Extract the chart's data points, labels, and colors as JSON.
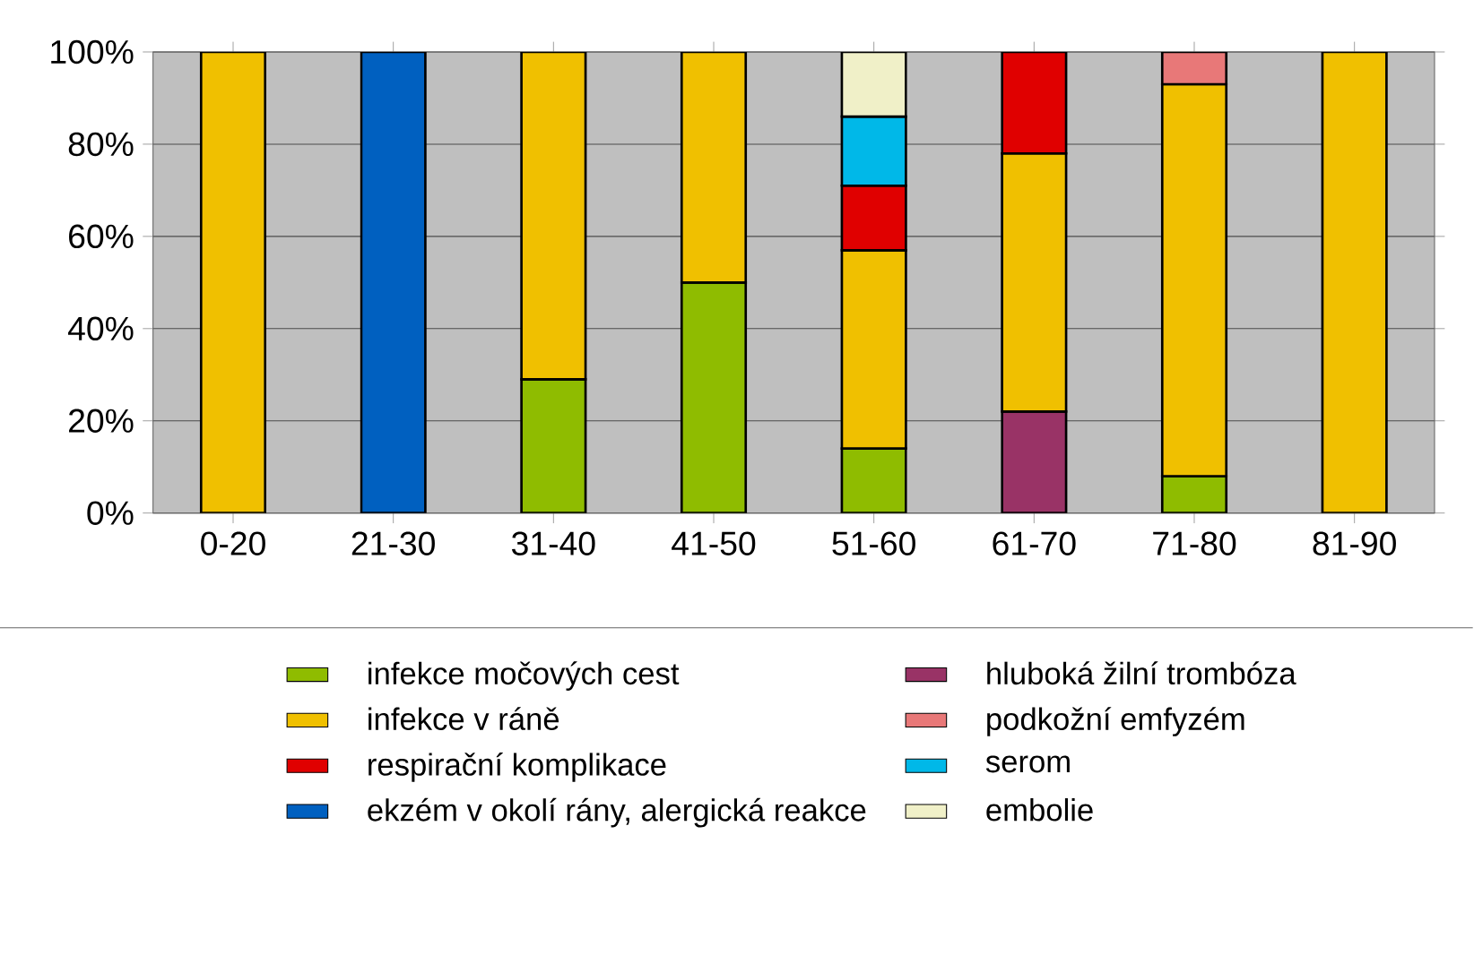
{
  "chart_data": {
    "type": "bar",
    "stacked": true,
    "categories": [
      "0-20",
      "21-30",
      "31-40",
      "41-50",
      "51-60",
      "61-70",
      "71-80",
      "81-90"
    ],
    "series": [
      {
        "name": "infekce močových cest",
        "color": "#8fbc00",
        "values": [
          null,
          null,
          29,
          50,
          14,
          null,
          8,
          null
        ]
      },
      {
        "name": "hluboká žilní trombóza",
        "color": "#993366",
        "values": [
          null,
          null,
          null,
          null,
          null,
          22,
          null,
          null
        ]
      },
      {
        "name": "infekce v ráně",
        "color": "#f0c000",
        "values": [
          100,
          null,
          71,
          50,
          43,
          56,
          85,
          100
        ]
      },
      {
        "name": "podkožní emfyzém",
        "color": "#e87878",
        "values": [
          null,
          null,
          null,
          null,
          null,
          null,
          7,
          null
        ]
      },
      {
        "name": "respirační komplikace",
        "color": "#e00000",
        "values": [
          null,
          null,
          null,
          null,
          14,
          22,
          null,
          null
        ]
      },
      {
        "name": "serom",
        "color": "#00b8e8",
        "values": [
          null,
          null,
          null,
          null,
          15,
          null,
          null,
          null
        ]
      },
      {
        "name": "ekzém v okolí rány, alergická reakce",
        "color": "#0060c0",
        "values": [
          null,
          100,
          null,
          null,
          null,
          null,
          null,
          null
        ]
      },
      {
        "name": "embolie",
        "color": "#f0f0c8",
        "values": [
          null,
          null,
          null,
          null,
          14,
          null,
          null,
          null
        ]
      }
    ],
    "ylim": [
      0,
      100
    ],
    "yticks": [
      {
        "value": 0,
        "label": "0%"
      },
      {
        "value": 20,
        "label": "20%"
      },
      {
        "value": 40,
        "label": "40%"
      },
      {
        "value": 60,
        "label": "60%"
      },
      {
        "value": 80,
        "label": "80%"
      },
      {
        "value": 100,
        "label": "100%"
      }
    ],
    "grid": "y",
    "legend": "bottom"
  }
}
